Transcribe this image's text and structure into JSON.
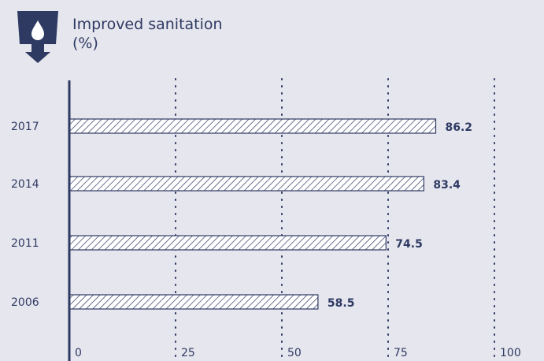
{
  "header": {
    "title": "Improved sanitation",
    "unit": "(%)",
    "icon": "water-drop-glass-icon"
  },
  "colors": {
    "background": "#e6e6ee",
    "ink": "#2f3a63",
    "bar_fill": "#ffffff"
  },
  "chart_data": {
    "type": "bar",
    "orientation": "horizontal",
    "title": "Improved sanitation",
    "unit": "(%)",
    "categories": [
      "2017",
      "2014",
      "2011",
      "2006"
    ],
    "values": [
      86.2,
      83.4,
      74.5,
      58.5
    ],
    "value_labels": [
      "86.2",
      "83.4",
      "74.5",
      "58.5"
    ],
    "xlim": [
      0,
      100
    ],
    "xticks": [
      0,
      25,
      50,
      75,
      100
    ],
    "xtick_labels": [
      "0",
      "25",
      "50",
      "75",
      "100"
    ],
    "grid": "vertical dotted",
    "bar_pattern": "diagonal hatch",
    "legend": "none"
  }
}
